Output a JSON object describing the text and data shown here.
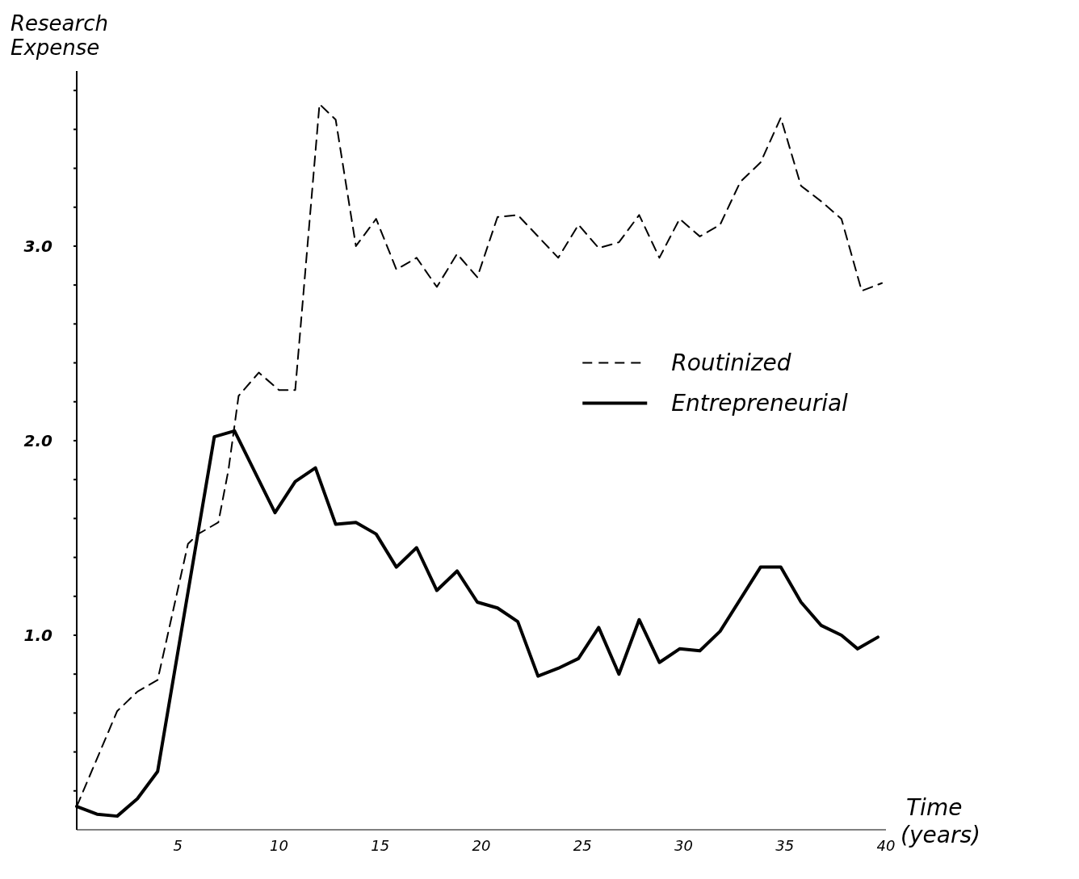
{
  "chart_data": {
    "type": "line",
    "xlabel": "Time (years)",
    "ylabel": "Research Expense",
    "xlim": [
      0,
      40
    ],
    "ylim": [
      0,
      3.9
    ],
    "xticks": [
      5,
      10,
      15,
      20,
      25,
      30,
      35,
      40
    ],
    "yticks": [
      {
        "value": 0.2,
        "label": null
      },
      {
        "value": 0.4,
        "label": null
      },
      {
        "value": 0.6,
        "label": null
      },
      {
        "value": 0.8,
        "label": null
      },
      {
        "value": 1,
        "label": "1.0"
      },
      {
        "value": 1.2,
        "label": null
      },
      {
        "value": 1.4,
        "label": null
      },
      {
        "value": 1.6,
        "label": null
      },
      {
        "value": 1.8,
        "label": null
      },
      {
        "value": 2,
        "label": "2.0"
      },
      {
        "value": 2.2,
        "label": null
      },
      {
        "value": 2.4,
        "label": null
      },
      {
        "value": 2.6,
        "label": null
      },
      {
        "value": 2.8,
        "label": null
      },
      {
        "value": 3,
        "label": "3.0"
      },
      {
        "value": 3.2,
        "label": null
      },
      {
        "value": 3.4,
        "label": null
      },
      {
        "value": 3.6,
        "label": null
      },
      {
        "value": 3.8,
        "label": null
      }
    ],
    "grid": false,
    "legend": "right",
    "series": [
      {
        "name": "Routinized",
        "color": "#000000",
        "line_style": "dashed",
        "x": [
          0,
          2,
          3,
          4,
          5.5,
          6,
          7,
          7.5,
          8,
          9,
          10,
          10.8,
          12,
          12.8,
          13.8,
          14.8,
          15.8,
          16.8,
          17.8,
          18.8,
          19.8,
          20.8,
          21.8,
          23.8,
          24.8,
          25.8,
          26.8,
          27.8,
          28.8,
          29.8,
          30.8,
          31.8,
          32.8,
          33.8,
          34.8,
          35.8,
          36.8,
          37.8,
          38.8,
          39.8
        ],
        "values": [
          0.12,
          0.61,
          0.71,
          0.77,
          1.47,
          1.52,
          1.58,
          1.85,
          2.23,
          2.35,
          2.26,
          2.26,
          3.73,
          3.65,
          3.0,
          3.14,
          2.88,
          2.94,
          2.79,
          2.96,
          2.84,
          3.15,
          3.16,
          2.94,
          3.11,
          2.99,
          3.02,
          3.16,
          2.94,
          3.14,
          3.05,
          3.11,
          3.33,
          3.43,
          3.66,
          3.31,
          3.23,
          3.14,
          2.77,
          2.81
        ]
      },
      {
        "name": "Entrepreneurial",
        "color": "#000000",
        "line_style": "solid",
        "x": [
          0,
          1,
          2,
          3,
          4,
          6.8,
          7.8,
          9.8,
          10.8,
          11.8,
          12.8,
          13.8,
          14.8,
          15.8,
          16.8,
          17.8,
          18.8,
          19.8,
          20.8,
          21.8,
          22.8,
          23.8,
          24.8,
          25.8,
          26.8,
          27.8,
          28.8,
          29.8,
          30.8,
          31.8,
          33.8,
          34.8,
          35.8,
          36.8,
          37.8,
          38.6,
          39.6
        ],
        "values": [
          0.12,
          0.08,
          0.07,
          0.16,
          0.3,
          2.02,
          2.05,
          1.63,
          1.79,
          1.86,
          1.57,
          1.58,
          1.52,
          1.35,
          1.45,
          1.23,
          1.33,
          1.17,
          1.14,
          1.07,
          0.79,
          0.83,
          0.88,
          1.04,
          0.8,
          1.08,
          0.86,
          0.93,
          0.92,
          1.02,
          1.35,
          1.35,
          1.17,
          1.05,
          1.0,
          0.93,
          0.99
        ]
      }
    ]
  }
}
